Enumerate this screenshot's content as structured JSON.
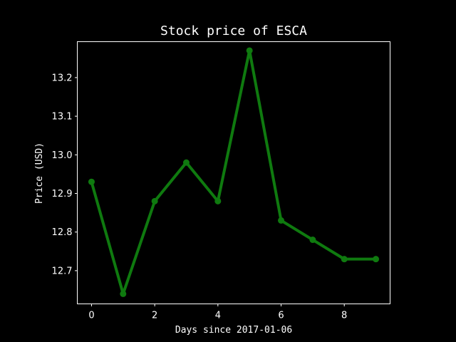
{
  "chart_data": {
    "type": "line",
    "title": "Stock price of ESCA",
    "xlabel": "Days since 2017-01-06",
    "ylabel": "Price (USD)",
    "x": [
      0,
      1,
      2,
      3,
      4,
      5,
      6,
      7,
      8,
      9
    ],
    "series": [
      {
        "values": [
          12.93,
          12.64,
          12.88,
          12.98,
          12.88,
          13.27,
          12.83,
          12.78,
          12.73,
          12.73
        ],
        "color": "#0f7a0f"
      }
    ],
    "xlim": [
      -0.45,
      9.45
    ],
    "ylim": [
      12.614,
      13.293
    ],
    "xticks": [
      0,
      2,
      4,
      6,
      8
    ],
    "yticks": [
      12.7,
      12.8,
      12.9,
      13.0,
      13.1,
      13.2
    ],
    "ytick_labels": [
      "12.7",
      "12.8",
      "12.9",
      "13.0",
      "13.1",
      "13.2"
    ],
    "grid": false,
    "background": "#000000",
    "foreground": "#ffffff"
  }
}
